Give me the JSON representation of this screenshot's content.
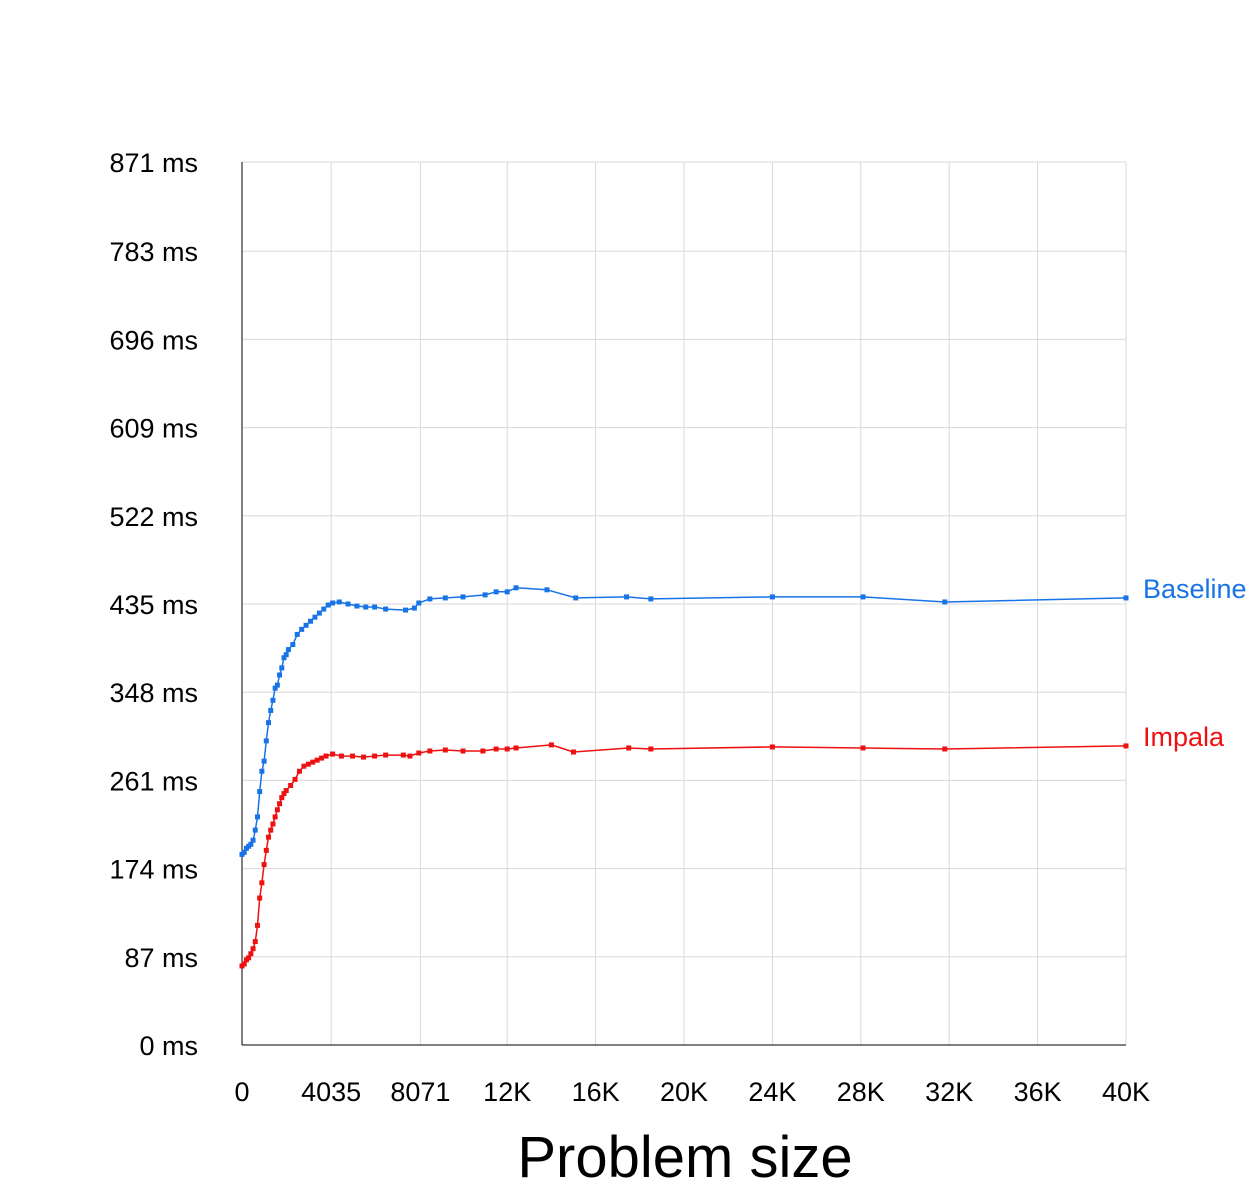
{
  "chart_data": {
    "type": "line",
    "title": "",
    "xlabel": "Problem size",
    "ylabel": "",
    "xlim": [
      0,
      40000
    ],
    "ylim": [
      0,
      871
    ],
    "grid": true,
    "legend": "inline-right",
    "x_ticks": [
      {
        "value": 0,
        "label": "0"
      },
      {
        "value": 4035,
        "label": "4035"
      },
      {
        "value": 8071,
        "label": "8071"
      },
      {
        "value": 12000,
        "label": "12K"
      },
      {
        "value": 16000,
        "label": "16K"
      },
      {
        "value": 20000,
        "label": "20K"
      },
      {
        "value": 24000,
        "label": "24K"
      },
      {
        "value": 28000,
        "label": "28K"
      },
      {
        "value": 32000,
        "label": "32K"
      },
      {
        "value": 36000,
        "label": "36K"
      },
      {
        "value": 40000,
        "label": "40K"
      }
    ],
    "y_ticks": [
      {
        "value": 0,
        "label": "0 ms"
      },
      {
        "value": 87,
        "label": "87 ms"
      },
      {
        "value": 174,
        "label": "174 ms"
      },
      {
        "value": 261,
        "label": "261 ms"
      },
      {
        "value": 348,
        "label": "348 ms"
      },
      {
        "value": 435,
        "label": "435 ms"
      },
      {
        "value": 522,
        "label": "522 ms"
      },
      {
        "value": 609,
        "label": "609 ms"
      },
      {
        "value": 696,
        "label": "696 ms"
      },
      {
        "value": 783,
        "label": "783 ms"
      },
      {
        "value": 871,
        "label": "871 ms"
      }
    ],
    "series": [
      {
        "name": "Baseline",
        "color": "#1874e6",
        "points": [
          [
            0,
            188
          ],
          [
            100,
            190
          ],
          [
            200,
            194
          ],
          [
            300,
            196
          ],
          [
            400,
            198
          ],
          [
            500,
            202
          ],
          [
            600,
            212
          ],
          [
            700,
            225
          ],
          [
            800,
            250
          ],
          [
            900,
            270
          ],
          [
            1000,
            280
          ],
          [
            1100,
            300
          ],
          [
            1200,
            318
          ],
          [
            1300,
            330
          ],
          [
            1400,
            340
          ],
          [
            1500,
            352
          ],
          [
            1600,
            355
          ],
          [
            1700,
            365
          ],
          [
            1800,
            372
          ],
          [
            1900,
            382
          ],
          [
            2000,
            385
          ],
          [
            2100,
            390
          ],
          [
            2300,
            395
          ],
          [
            2500,
            405
          ],
          [
            2700,
            410
          ],
          [
            2900,
            414
          ],
          [
            3100,
            418
          ],
          [
            3300,
            422
          ],
          [
            3500,
            426
          ],
          [
            3700,
            430
          ],
          [
            3900,
            434
          ],
          [
            4100,
            436
          ],
          [
            4400,
            437
          ],
          [
            4800,
            435
          ],
          [
            5200,
            433
          ],
          [
            5600,
            432
          ],
          [
            6000,
            432
          ],
          [
            6500,
            430
          ],
          [
            7400,
            429
          ],
          [
            7800,
            431
          ],
          [
            8000,
            436
          ],
          [
            8500,
            440
          ],
          [
            9200,
            441
          ],
          [
            10000,
            442
          ],
          [
            11000,
            444
          ],
          [
            11500,
            447
          ],
          [
            12000,
            447
          ],
          [
            12400,
            451
          ],
          [
            13800,
            449
          ],
          [
            15100,
            441
          ],
          [
            17400,
            442
          ],
          [
            18500,
            440
          ],
          [
            24000,
            442
          ],
          [
            28100,
            442
          ],
          [
            31800,
            437
          ],
          [
            40000,
            441
          ]
        ]
      },
      {
        "name": "Impala",
        "color": "#ee1111",
        "points": [
          [
            0,
            78
          ],
          [
            100,
            80
          ],
          [
            200,
            84
          ],
          [
            300,
            86
          ],
          [
            400,
            90
          ],
          [
            500,
            95
          ],
          [
            600,
            102
          ],
          [
            700,
            118
          ],
          [
            800,
            145
          ],
          [
            900,
            160
          ],
          [
            1000,
            178
          ],
          [
            1100,
            192
          ],
          [
            1200,
            205
          ],
          [
            1300,
            212
          ],
          [
            1400,
            218
          ],
          [
            1500,
            225
          ],
          [
            1600,
            232
          ],
          [
            1700,
            238
          ],
          [
            1800,
            244
          ],
          [
            1900,
            248
          ],
          [
            2000,
            251
          ],
          [
            2200,
            256
          ],
          [
            2400,
            262
          ],
          [
            2600,
            270
          ],
          [
            2800,
            275
          ],
          [
            3000,
            277
          ],
          [
            3200,
            279
          ],
          [
            3400,
            281
          ],
          [
            3600,
            283
          ],
          [
            3800,
            285
          ],
          [
            4100,
            287
          ],
          [
            4500,
            285
          ],
          [
            5000,
            285
          ],
          [
            5500,
            284
          ],
          [
            6000,
            285
          ],
          [
            6500,
            286
          ],
          [
            7300,
            286
          ],
          [
            7600,
            285
          ],
          [
            8000,
            288
          ],
          [
            8500,
            290
          ],
          [
            9200,
            291
          ],
          [
            10000,
            290
          ],
          [
            10900,
            290
          ],
          [
            11500,
            292
          ],
          [
            12000,
            292
          ],
          [
            12400,
            293
          ],
          [
            14000,
            296
          ],
          [
            15000,
            289
          ],
          [
            17500,
            293
          ],
          [
            18500,
            292
          ],
          [
            24000,
            294
          ],
          [
            28100,
            293
          ],
          [
            31800,
            292
          ],
          [
            40000,
            295
          ]
        ]
      }
    ]
  }
}
